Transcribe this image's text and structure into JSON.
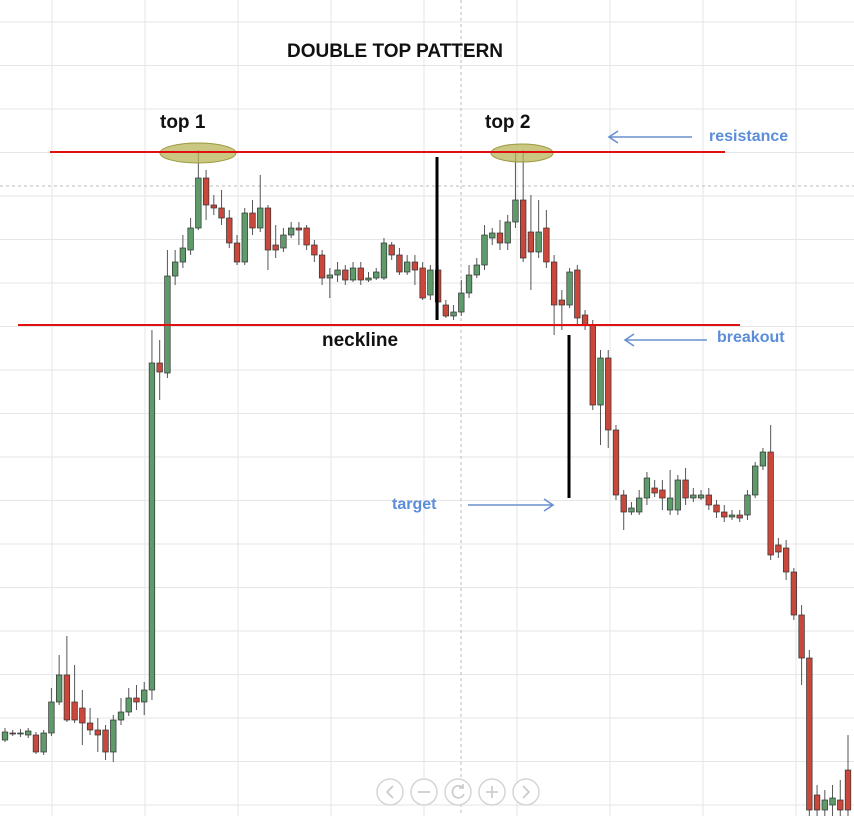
{
  "chart_data": {
    "type": "candlestick",
    "title": "DOUBLE TOP PATTERN",
    "annotations": {
      "top1": "top 1",
      "top2": "top 2",
      "resistance": "resistance",
      "neckline": "neckline",
      "breakout": "breakout",
      "target": "target"
    },
    "resistance_level": 664,
    "neckline_level": 491,
    "up_color": "#5e9a6a",
    "down_color": "#c9483b",
    "ylim": [
      0,
      816
    ],
    "open": [
      76,
      83,
      83,
      81,
      81,
      64,
      83,
      114,
      141,
      114,
      108,
      93,
      86,
      86,
      64,
      96,
      104,
      118,
      114,
      126,
      453,
      443,
      540,
      554,
      566,
      588,
      638,
      611,
      608,
      598,
      573,
      554,
      603,
      588,
      608,
      571,
      568,
      581,
      588,
      588,
      571,
      561,
      538,
      541,
      546,
      536,
      548,
      536,
      538,
      538,
      571,
      561,
      544,
      554,
      548,
      521,
      546,
      511,
      500,
      504,
      523,
      541,
      551,
      578,
      583,
      573,
      594,
      616,
      584,
      564,
      588,
      554,
      516,
      511,
      546,
      501,
      491,
      411,
      458,
      386,
      321,
      304,
      304,
      318,
      328,
      326,
      306,
      306,
      336,
      318,
      318,
      321,
      311,
      304,
      299,
      301,
      301,
      321,
      350,
      364,
      271,
      268,
      244,
      201,
      158,
      21,
      6,
      11,
      16,
      46
    ],
    "high": [
      88,
      86,
      87,
      88,
      84,
      86,
      128,
      161,
      180,
      151,
      126,
      108,
      98,
      91,
      101,
      118,
      128,
      131,
      134,
      486,
      476,
      566,
      566,
      581,
      598,
      666,
      646,
      621,
      626,
      606,
      581,
      608,
      616,
      641,
      611,
      591,
      588,
      594,
      594,
      591,
      576,
      566,
      548,
      554,
      551,
      554,
      554,
      544,
      548,
      578,
      574,
      568,
      561,
      561,
      554,
      551,
      551,
      516,
      511,
      536,
      551,
      558,
      591,
      588,
      596,
      601,
      664,
      666,
      621,
      616,
      606,
      561,
      526,
      548,
      551,
      506,
      496,
      466,
      466,
      391,
      326,
      314,
      326,
      344,
      336,
      336,
      346,
      341,
      348,
      328,
      326,
      328,
      316,
      311,
      306,
      306,
      326,
      354,
      368,
      391,
      278,
      276,
      248,
      211,
      166,
      31,
      26,
      31,
      36,
      81
    ],
    "low": [
      74,
      80,
      79,
      78,
      62,
      61,
      80,
      111,
      94,
      93,
      71,
      81,
      64,
      56,
      54,
      91,
      100,
      106,
      101,
      116,
      416,
      438,
      531,
      548,
      561,
      586,
      596,
      601,
      591,
      568,
      551,
      551,
      581,
      584,
      546,
      558,
      564,
      578,
      571,
      566,
      554,
      531,
      518,
      534,
      531,
      534,
      531,
      534,
      536,
      536,
      556,
      541,
      541,
      531,
      516,
      516,
      496,
      498,
      496,
      500,
      518,
      538,
      546,
      571,
      566,
      566,
      588,
      554,
      526,
      558,
      548,
      481,
      486,
      508,
      491,
      486,
      406,
      371,
      368,
      316,
      286,
      301,
      301,
      311,
      319,
      306,
      301,
      301,
      311,
      314,
      316,
      306,
      298,
      294,
      296,
      294,
      296,
      318,
      346,
      256,
      258,
      236,
      196,
      131,
      0,
      0,
      0,
      0,
      0,
      0
    ],
    "close": [
      84,
      82,
      83,
      85,
      64,
      83,
      114,
      141,
      96,
      96,
      93,
      86,
      81,
      64,
      96,
      104,
      118,
      114,
      126,
      453,
      444,
      540,
      554,
      568,
      588,
      638,
      611,
      608,
      598,
      573,
      554,
      603,
      588,
      608,
      566,
      566,
      581,
      588,
      586,
      571,
      561,
      538,
      541,
      546,
      536,
      548,
      536,
      538,
      544,
      573,
      561,
      544,
      554,
      546,
      518,
      546,
      514,
      500,
      504,
      523,
      541,
      551,
      581,
      583,
      573,
      594,
      616,
      558,
      564,
      584,
      554,
      511,
      511,
      544,
      498,
      491,
      411,
      458,
      386,
      321,
      304,
      308,
      318,
      338,
      323,
      318,
      318,
      336,
      318,
      321,
      321,
      311,
      304,
      299,
      301,
      298,
      321,
      350,
      364,
      261,
      264,
      244,
      201,
      158,
      6,
      6,
      16,
      18,
      6,
      6
    ]
  }
}
